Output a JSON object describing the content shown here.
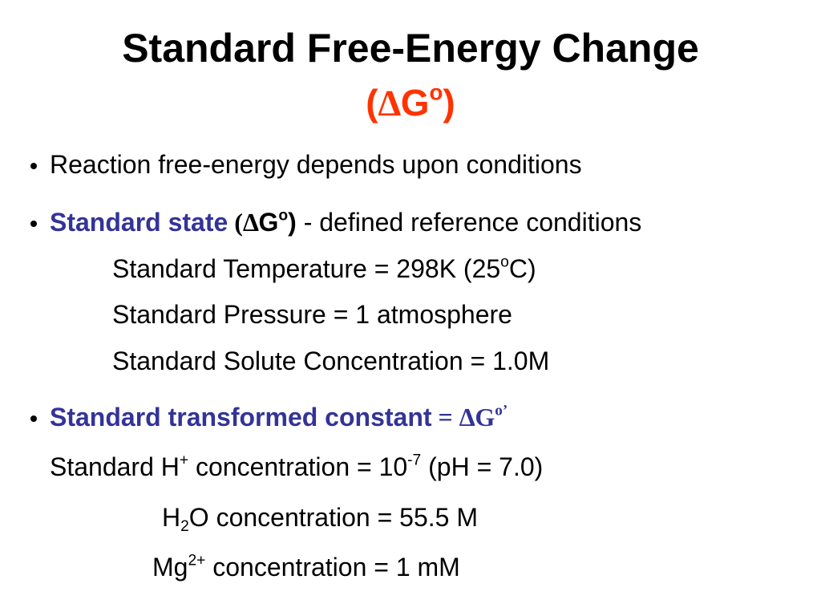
{
  "title": {
    "line1": "Standard Free-Energy Change",
    "line2": [
      "(",
      "∆",
      "G",
      "o",
      ")"
    ]
  },
  "bullets": [
    {
      "text": [
        "Reaction free-energy depends upon conditions"
      ]
    },
    {
      "text": [
        "Standard state",
        " (",
        "∆",
        "G",
        "o",
        ")",
        " - defined reference conditions"
      ],
      "details": [
        [
          "Standard Temperature = 298K (25",
          "o",
          "C)"
        ],
        [
          "Standard Pressure = 1 atmosphere"
        ],
        [
          "Standard Solute Concentration = 1.0M"
        ]
      ]
    },
    {
      "text": [
        "Standard transformed constant",
        " = ∆G",
        "o",
        "’"
      ],
      "details": [
        [
          "Standard H",
          "+",
          " concentration = 10",
          "-7",
          " (pH = 7.0)"
        ],
        [
          "H",
          "2",
          "O concentration = 55.5 M"
        ],
        [
          "Mg",
          "2+",
          " concentration = 1 mM"
        ]
      ]
    }
  ]
}
